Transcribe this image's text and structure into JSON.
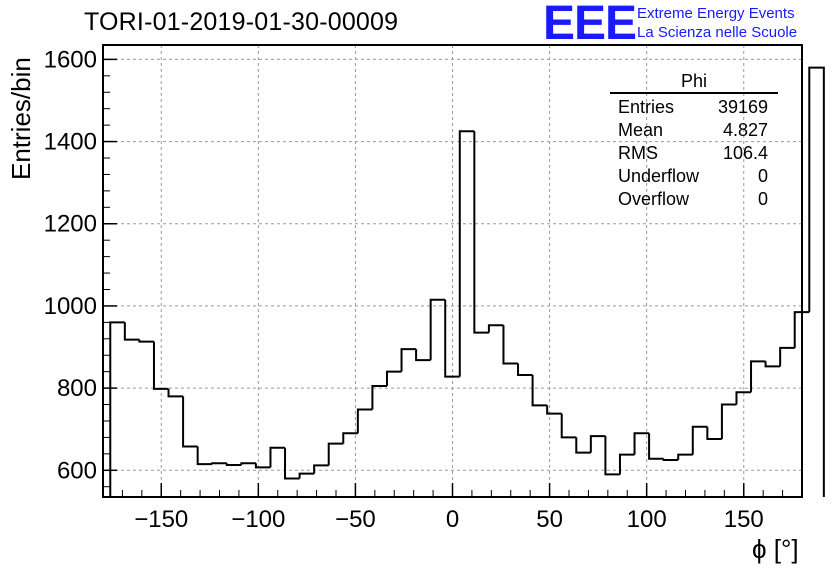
{
  "chart_data": {
    "type": "bar",
    "title": "TORI-01-2019-01-30-00009",
    "xlabel": "ϕ [°]",
    "ylabel": "Entries/bin",
    "xlim": [
      -180,
      180
    ],
    "ylim": [
      535,
      1635
    ],
    "grid": true,
    "bin_width": 7.5,
    "xticks": [
      -150,
      -100,
      -50,
      0,
      50,
      100,
      150
    ],
    "xtick_labels": [
      "−150",
      "−100",
      "−50",
      "0",
      "50",
      "100",
      "150"
    ],
    "yticks": [
      600,
      800,
      1000,
      1200,
      1400,
      1600
    ],
    "ytick_labels": [
      "600",
      "800",
      "1000",
      "1200",
      "1400",
      "1600"
    ],
    "bin_edges_start": -176.25,
    "values": [
      960,
      918,
      913,
      798,
      780,
      658,
      615,
      617,
      613,
      617,
      607,
      655,
      580,
      592,
      612,
      665,
      690,
      748,
      805,
      840,
      895,
      868,
      1015,
      828,
      1425,
      935,
      953,
      860,
      832,
      758,
      738,
      680,
      643,
      683,
      590,
      638,
      690,
      628,
      625,
      638,
      706,
      676,
      760,
      790,
      865,
      853,
      898,
      985,
      1580
    ],
    "line_color": "#000000"
  },
  "stats_box": {
    "title": "Phi",
    "rows": [
      {
        "label": "Entries",
        "value": "39169"
      },
      {
        "label": "Mean",
        "value": "4.827"
      },
      {
        "label": "RMS",
        "value": "106.4"
      },
      {
        "label": "Underflow",
        "value": "0"
      },
      {
        "label": "Overflow",
        "value": "0"
      }
    ]
  },
  "logo": {
    "mark": "EEE",
    "line1": "Extreme Energy Events",
    "line2": "La Scienza nelle Scuole",
    "color": "#1a1aff"
  }
}
